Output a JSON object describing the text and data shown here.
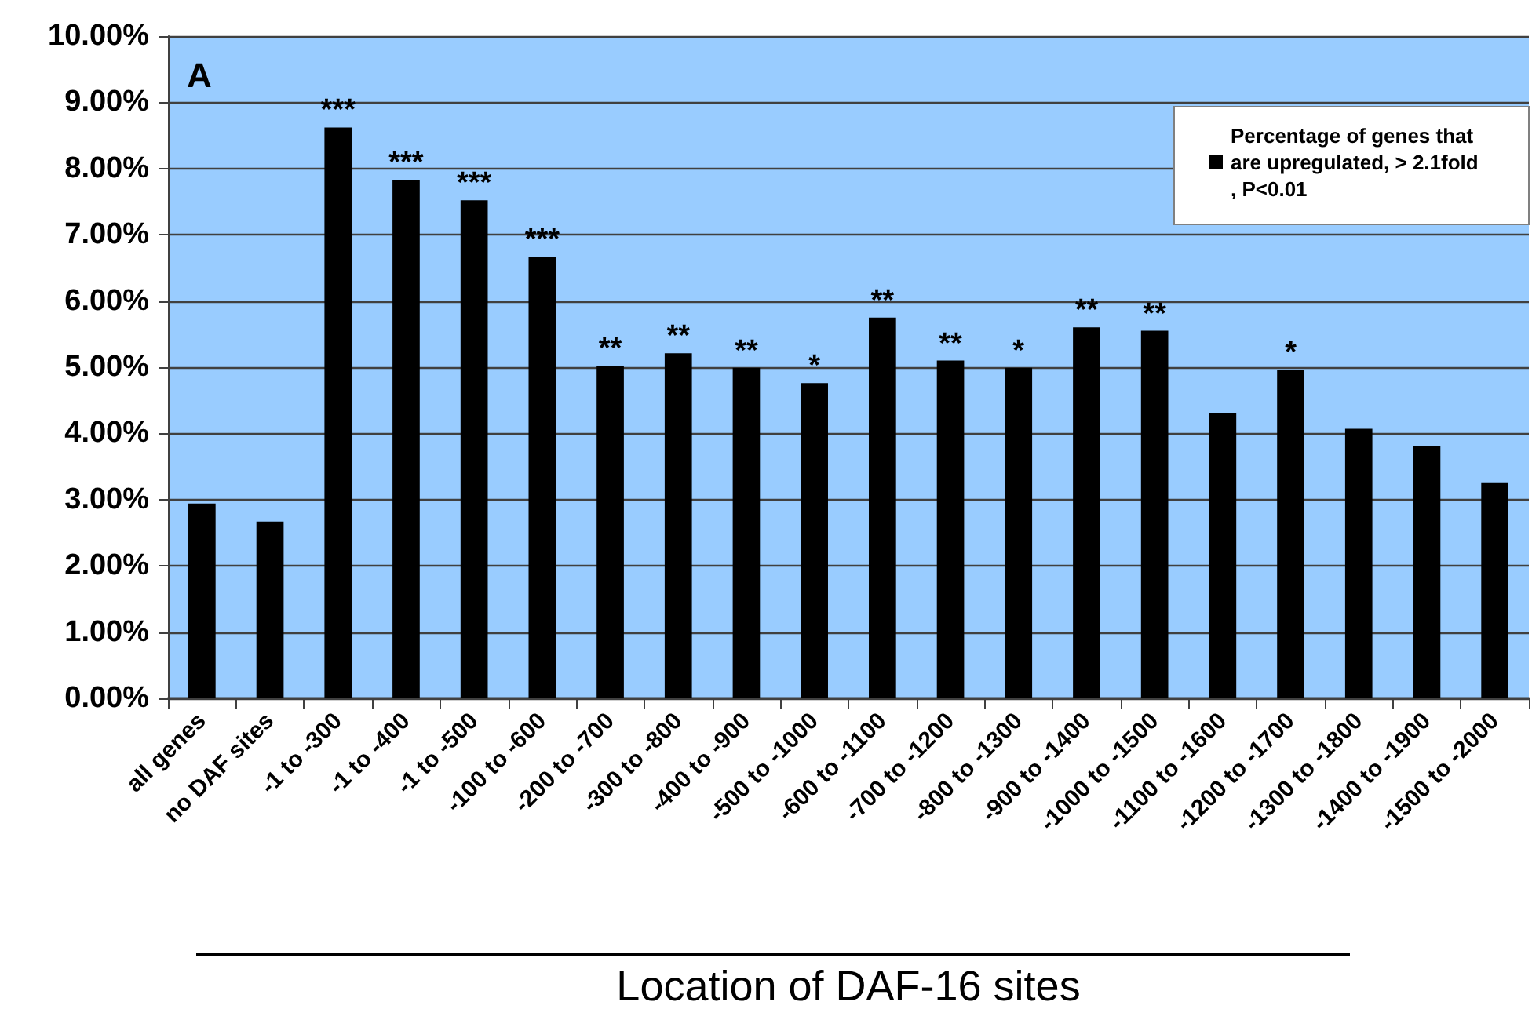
{
  "chart_data": {
    "type": "bar",
    "xlabel": "Location of DAF-16 sites",
    "categories": [
      "all genes",
      "no DAF sites",
      "-1 to -300",
      "-1 to -400",
      "-1 to -500",
      "-100 to -600",
      "-200 to -700",
      "-300 to -800",
      "-400 to -900",
      "-500 to -1000",
      "-600 to -1100",
      "-700 to -1200",
      "-800 to -1300",
      "-900 to -1400",
      "-1000 to -1500",
      "-1100 to -1600",
      "-1200 to -1700",
      "-1300 to -1800",
      "-1400 to -1900",
      "-1500 to -2000"
    ],
    "series": [
      {
        "name": "Percentage of genes that are upregulated, > 2.1fold, P<0.01",
        "color": "#000000",
        "values": [
          2.94,
          2.67,
          8.62,
          7.83,
          7.52,
          6.67,
          5.02,
          5.21,
          4.99,
          4.76,
          5.75,
          5.1,
          4.99,
          5.6,
          5.55,
          4.31,
          4.96,
          4.07,
          3.81,
          3.26
        ]
      }
    ],
    "ylim": [
      0,
      10
    ],
    "yticks": [
      {
        "value": 0,
        "label": "0.00%"
      },
      {
        "value": 1,
        "label": "1.00%"
      },
      {
        "value": 2,
        "label": "2.00%"
      },
      {
        "value": 3,
        "label": "3.00%"
      },
      {
        "value": 4,
        "label": "4.00%"
      },
      {
        "value": 5,
        "label": "5.00%"
      },
      {
        "value": 6,
        "label": "6.00%"
      },
      {
        "value": 7,
        "label": "7.00%"
      },
      {
        "value": 8,
        "label": "8.00%"
      },
      {
        "value": 9,
        "label": "9.00%"
      },
      {
        "value": 10,
        "label": "10.00%"
      }
    ],
    "grid": "y",
    "legend": "top right",
    "annotations": [
      "A",
      {
        "text": "***",
        "x": "-1 to -300",
        "y": 8.62
      },
      {
        "text": "***",
        "x": "-1 to -400",
        "y": 7.83
      },
      {
        "text": "***",
        "x": "-1 to -500",
        "y": 7.52
      },
      {
        "text": "***",
        "x": "-100 to -600",
        "y": 6.67
      },
      {
        "text": "**",
        "x": "-200 to -700",
        "y": 5.02
      },
      {
        "text": "**",
        "x": "-300 to -800",
        "y": 5.21
      },
      {
        "text": "**",
        "x": "-400 to -900",
        "y": 4.99
      },
      {
        "text": "*",
        "x": "-500 to -1000",
        "y": 4.76
      },
      {
        "text": "**",
        "x": "-600 to -1100",
        "y": 5.75
      },
      {
        "text": "**",
        "x": "-700 to -1200",
        "y": 5.1
      },
      {
        "text": "*",
        "x": "-800 to -1300",
        "y": 4.99
      },
      {
        "text": "**",
        "x": "-900 to -1400",
        "y": 5.6
      },
      {
        "text": "**",
        "x": "-1000 to -1500",
        "y": 5.55
      },
      {
        "text": "*",
        "x": "-1200 to -1700",
        "y": 4.96
      }
    ]
  }
}
